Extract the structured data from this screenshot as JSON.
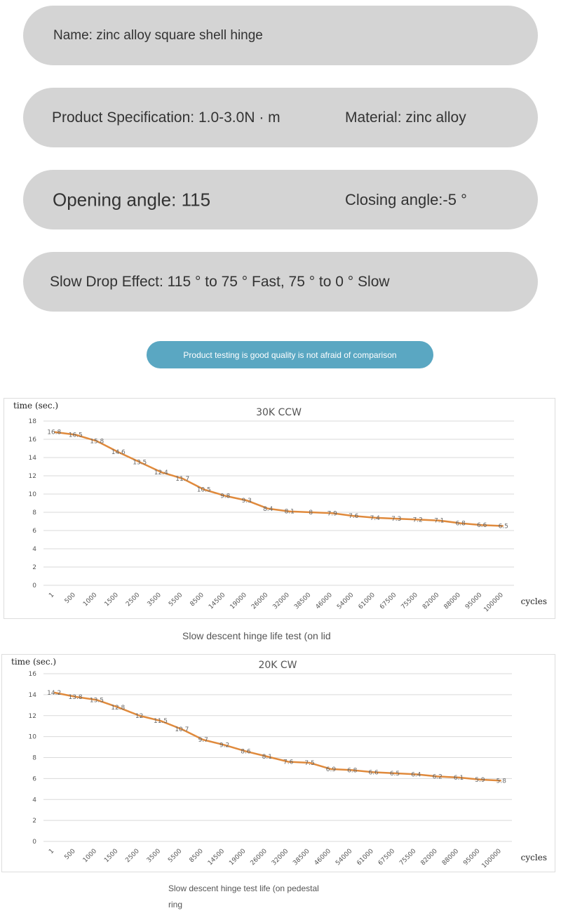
{
  "info_rows": [
    [
      "Name: zinc alloy square shell hinge"
    ],
    [
      "Product Specification: 1.0-3.0N · m",
      "Material: zinc alloy"
    ],
    [
      "Opening angle: 115",
      "Closing angle:-5 °"
    ],
    [
      "Slow Drop Effect: 115 ° to 75 ° Fast, 75 ° to 0 ° Slow"
    ]
  ],
  "button": "Product testing is good quality is not afraid of comparison",
  "captions": [
    "Slow descent hinge life test (on lid",
    "Slow descent hinge test life (on pedestal ring"
  ],
  "chart_data": [
    {
      "type": "line",
      "title": "30K CCW",
      "y_label": "time (sec.)",
      "x_label": "cycles",
      "categories": [
        "1",
        "500",
        "1000",
        "1500",
        "2500",
        "3500",
        "5500",
        "8500",
        "14500",
        "19000",
        "26000",
        "32000",
        "38500",
        "46000",
        "54000",
        "61000",
        "67500",
        "75500",
        "82000",
        "88000",
        "95000",
        "100000"
      ],
      "series": [
        {
          "name": "30K CCW",
          "color": "#e08a3c",
          "values": [
            16.8,
            16.5,
            15.8,
            14.6,
            13.5,
            12.4,
            11.7,
            10.5,
            9.8,
            9.3,
            8.4,
            8.1,
            8,
            7.9,
            7.6,
            7.4,
            7.3,
            7.2,
            7.1,
            6.8,
            6.6,
            6.5
          ]
        }
      ],
      "ylim": [
        0,
        18
      ],
      "yticks": [
        0,
        2,
        4,
        6,
        8,
        10,
        12,
        14,
        16,
        18
      ],
      "grid": true
    },
    {
      "type": "line",
      "title": "20K CW",
      "y_label": "time (sec.)",
      "x_label": "cycles",
      "categories": [
        "1",
        "500",
        "1000",
        "1500",
        "2500",
        "3500",
        "5500",
        "8500",
        "14500",
        "19000",
        "26000",
        "32000",
        "38500",
        "46000",
        "54000",
        "61000",
        "67500",
        "75500",
        "82000",
        "88000",
        "95000",
        "100000"
      ],
      "series": [
        {
          "name": "20K CW",
          "color": "#e08a3c",
          "values": [
            14.2,
            13.8,
            13.5,
            12.8,
            12,
            11.5,
            10.7,
            9.7,
            9.2,
            8.6,
            8.1,
            7.6,
            7.5,
            6.9,
            6.8,
            6.6,
            6.5,
            6.4,
            6.2,
            6.1,
            5.9,
            5.8
          ]
        }
      ],
      "ylim": [
        0,
        16
      ],
      "yticks": [
        0,
        2,
        4,
        6,
        8,
        10,
        12,
        14,
        16
      ],
      "grid": true
    }
  ]
}
